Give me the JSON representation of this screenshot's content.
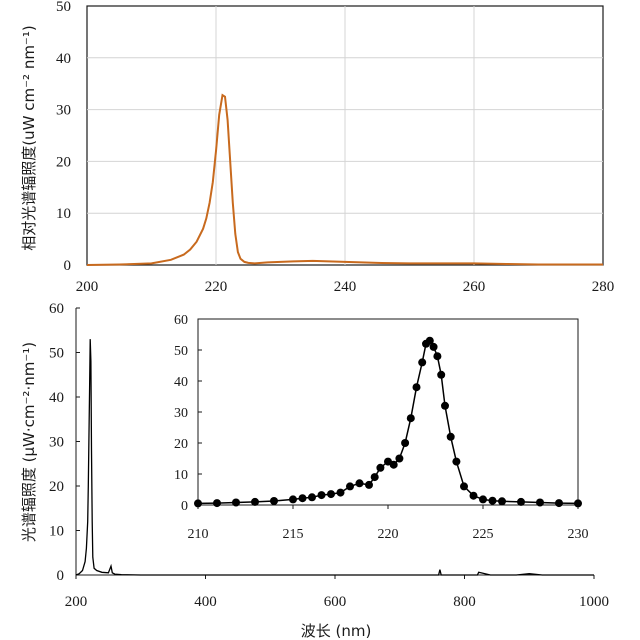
{
  "chart_data": [
    {
      "type": "line",
      "title": "",
      "xlabel": "",
      "ylabel": "相对光谱辐照度(uW cm⁻² nm⁻¹)",
      "xlim": [
        200,
        280
      ],
      "ylim": [
        0,
        50
      ],
      "xticks": [
        200,
        220,
        240,
        260,
        280
      ],
      "yticks": [
        0,
        10,
        20,
        30,
        40,
        50
      ],
      "grid": true,
      "series_color": "#c86a1e",
      "x": [
        200,
        205,
        210,
        213,
        215,
        216,
        217,
        218,
        218.5,
        219,
        219.5,
        220,
        220.5,
        221,
        221.4,
        221.8,
        222.2,
        222.6,
        223,
        223.4,
        223.8,
        224.4,
        225,
        226,
        228,
        230,
        232,
        235,
        240,
        245,
        250,
        255,
        260,
        265,
        270,
        275,
        280
      ],
      "y": [
        0,
        0.1,
        0.3,
        1.0,
        2.0,
        3.0,
        4.5,
        7.0,
        9.0,
        12.0,
        16.0,
        22.0,
        29.0,
        32.8,
        32.5,
        28.0,
        20.0,
        12.0,
        6.0,
        2.5,
        1.2,
        0.6,
        0.4,
        0.3,
        0.5,
        0.6,
        0.7,
        0.8,
        0.6,
        0.4,
        0.3,
        0.3,
        0.3,
        0.2,
        0.1,
        0.1,
        0.1
      ]
    },
    {
      "type": "line",
      "title": "",
      "xlabel": "波长 (nm)",
      "ylabel": "光谱辐照度 (μW·cm⁻²·nm⁻¹)",
      "xlim": [
        200,
        1000
      ],
      "ylim": [
        0,
        60
      ],
      "xticks": [
        200,
        400,
        600,
        800,
        1000
      ],
      "yticks": [
        0,
        10,
        20,
        30,
        40,
        50,
        60
      ],
      "ytick_labels": [
        "0",
        "10",
        "20",
        "30",
        "40",
        "50",
        "60"
      ],
      "series_color": "#000000",
      "x": [
        200,
        205,
        210,
        214,
        216,
        218,
        219,
        220,
        221,
        222,
        223,
        224,
        225,
        226,
        228,
        232,
        240,
        250,
        254,
        256,
        260,
        270,
        300,
        400,
        500,
        600,
        700,
        760,
        762,
        764,
        800,
        820,
        822,
        840,
        880,
        900,
        920,
        960,
        1000
      ],
      "y": [
        0,
        0.3,
        1.0,
        3.0,
        6.0,
        12.0,
        20.0,
        32.0,
        42.0,
        53.0,
        48.0,
        28.0,
        12.0,
        4.0,
        1.5,
        1.0,
        0.6,
        0.5,
        2.0,
        0.5,
        0.2,
        0.1,
        0,
        0,
        0,
        0,
        0,
        0,
        1.2,
        0,
        0,
        0,
        0.6,
        0,
        0,
        0.3,
        0,
        0,
        0
      ]
    },
    {
      "type": "scatter",
      "title": "",
      "xlabel": "",
      "ylabel": "",
      "xlim": [
        210,
        230
      ],
      "ylim": [
        0,
        60
      ],
      "xticks": [
        210,
        215,
        220,
        225,
        230
      ],
      "yticks": [
        0,
        10,
        20,
        30,
        40,
        50,
        60
      ],
      "series_color": "#000000",
      "x": [
        210,
        211,
        212,
        213,
        214,
        215,
        215.5,
        216,
        216.5,
        217,
        217.5,
        218,
        218.5,
        219,
        219.3,
        219.6,
        220,
        220.3,
        220.6,
        220.9,
        221.2,
        221.5,
        221.8,
        222,
        222.2,
        222.4,
        222.6,
        222.8,
        223,
        223.3,
        223.6,
        224,
        224.5,
        225,
        225.5,
        226,
        227,
        228,
        229,
        230
      ],
      "y": [
        0.5,
        0.6,
        0.8,
        1.0,
        1.3,
        1.8,
        2.2,
        2.5,
        3.2,
        3.5,
        4.0,
        6.0,
        7.0,
        6.5,
        9.0,
        12.0,
        14.0,
        13.0,
        15.0,
        20.0,
        28.0,
        38.0,
        46.0,
        52.0,
        53.0,
        51.0,
        48.0,
        42.0,
        32.0,
        22.0,
        14.0,
        6.0,
        3.0,
        1.8,
        1.4,
        1.2,
        1.0,
        0.8,
        0.6,
        0.5
      ]
    }
  ]
}
